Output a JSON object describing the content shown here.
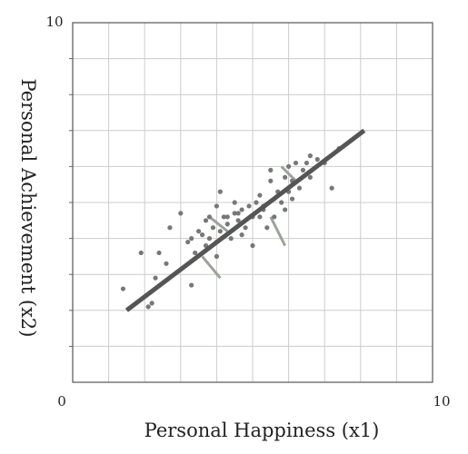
{
  "chart_data": {
    "type": "scatter",
    "xlabel": "Personal Happiness (x1)",
    "ylabel": "Personal Achievement (x2)",
    "xlim": [
      0,
      10
    ],
    "ylim": [
      0,
      10
    ],
    "x_tick_labels": [
      "0",
      "10"
    ],
    "y_tick_labels": [
      "10"
    ],
    "grid": true,
    "grid_step": 1,
    "colors": {
      "points": "#777777",
      "fit_line": "#555555",
      "residuals": "#9aa39a",
      "grid": "#cccccc",
      "frame": "#555555"
    },
    "points": [
      [
        1.4,
        2.6
      ],
      [
        2.1,
        2.1
      ],
      [
        2.2,
        2.2
      ],
      [
        1.9,
        3.6
      ],
      [
        2.4,
        3.6
      ],
      [
        2.6,
        3.3
      ],
      [
        2.3,
        2.9
      ],
      [
        2.7,
        4.3
      ],
      [
        3.0,
        4.7
      ],
      [
        3.2,
        3.9
      ],
      [
        3.3,
        4.0
      ],
      [
        3.4,
        3.6
      ],
      [
        3.6,
        4.1
      ],
      [
        3.5,
        4.2
      ],
      [
        3.7,
        4.5
      ],
      [
        3.8,
        4.0
      ],
      [
        3.9,
        4.3
      ],
      [
        4.0,
        3.9
      ],
      [
        3.7,
        3.8
      ],
      [
        4.1,
        4.2
      ],
      [
        4.2,
        4.6
      ],
      [
        4.3,
        4.4
      ],
      [
        4.4,
        4.0
      ],
      [
        4.1,
        5.3
      ],
      [
        4.0,
        4.9
      ],
      [
        3.8,
        4.6
      ],
      [
        4.5,
        4.7
      ],
      [
        4.6,
        4.5
      ],
      [
        4.7,
        4.8
      ],
      [
        4.8,
        4.3
      ],
      [
        4.9,
        4.9
      ],
      [
        5.0,
        4.6
      ],
      [
        5.1,
        5.0
      ],
      [
        5.2,
        5.2
      ],
      [
        5.3,
        4.8
      ],
      [
        5.4,
        4.3
      ],
      [
        5.5,
        5.6
      ],
      [
        5.6,
        5.1
      ],
      [
        5.7,
        5.3
      ],
      [
        5.8,
        5.0
      ],
      [
        5.9,
        5.7
      ],
      [
        6.0,
        5.3
      ],
      [
        6.1,
        5.6
      ],
      [
        6.2,
        6.1
      ],
      [
        6.3,
        5.4
      ],
      [
        6.4,
        5.9
      ],
      [
        6.5,
        6.1
      ],
      [
        6.6,
        5.7
      ],
      [
        6.8,
        6.2
      ],
      [
        7.0,
        6.1
      ],
      [
        7.2,
        5.4
      ],
      [
        7.4,
        6.5
      ],
      [
        4.7,
        4.1
      ],
      [
        5.0,
        3.8
      ],
      [
        5.3,
        4.9
      ],
      [
        5.6,
        4.6
      ],
      [
        5.9,
        4.8
      ],
      [
        6.1,
        5.1
      ],
      [
        4.3,
        4.6
      ],
      [
        4.5,
        5.0
      ],
      [
        4.6,
        4.7
      ],
      [
        5.2,
        4.6
      ],
      [
        3.3,
        2.7
      ],
      [
        4.0,
        3.5
      ],
      [
        6.0,
        6.0
      ],
      [
        6.6,
        6.3
      ],
      [
        5.5,
        5.9
      ]
    ],
    "fit_line": {
      "from": [
        1.5,
        2.0
      ],
      "to": [
        8.1,
        7.0
      ]
    },
    "residual_segments": [
      [
        [
          3.6,
          3.5
        ],
        [
          4.1,
          2.9
        ]
      ],
      [
        [
          3.8,
          4.6
        ],
        [
          4.3,
          4.2
        ]
      ],
      [
        [
          5.5,
          4.6
        ],
        [
          5.9,
          3.8
        ]
      ],
      [
        [
          5.8,
          6.0
        ],
        [
          6.2,
          5.6
        ]
      ]
    ]
  }
}
